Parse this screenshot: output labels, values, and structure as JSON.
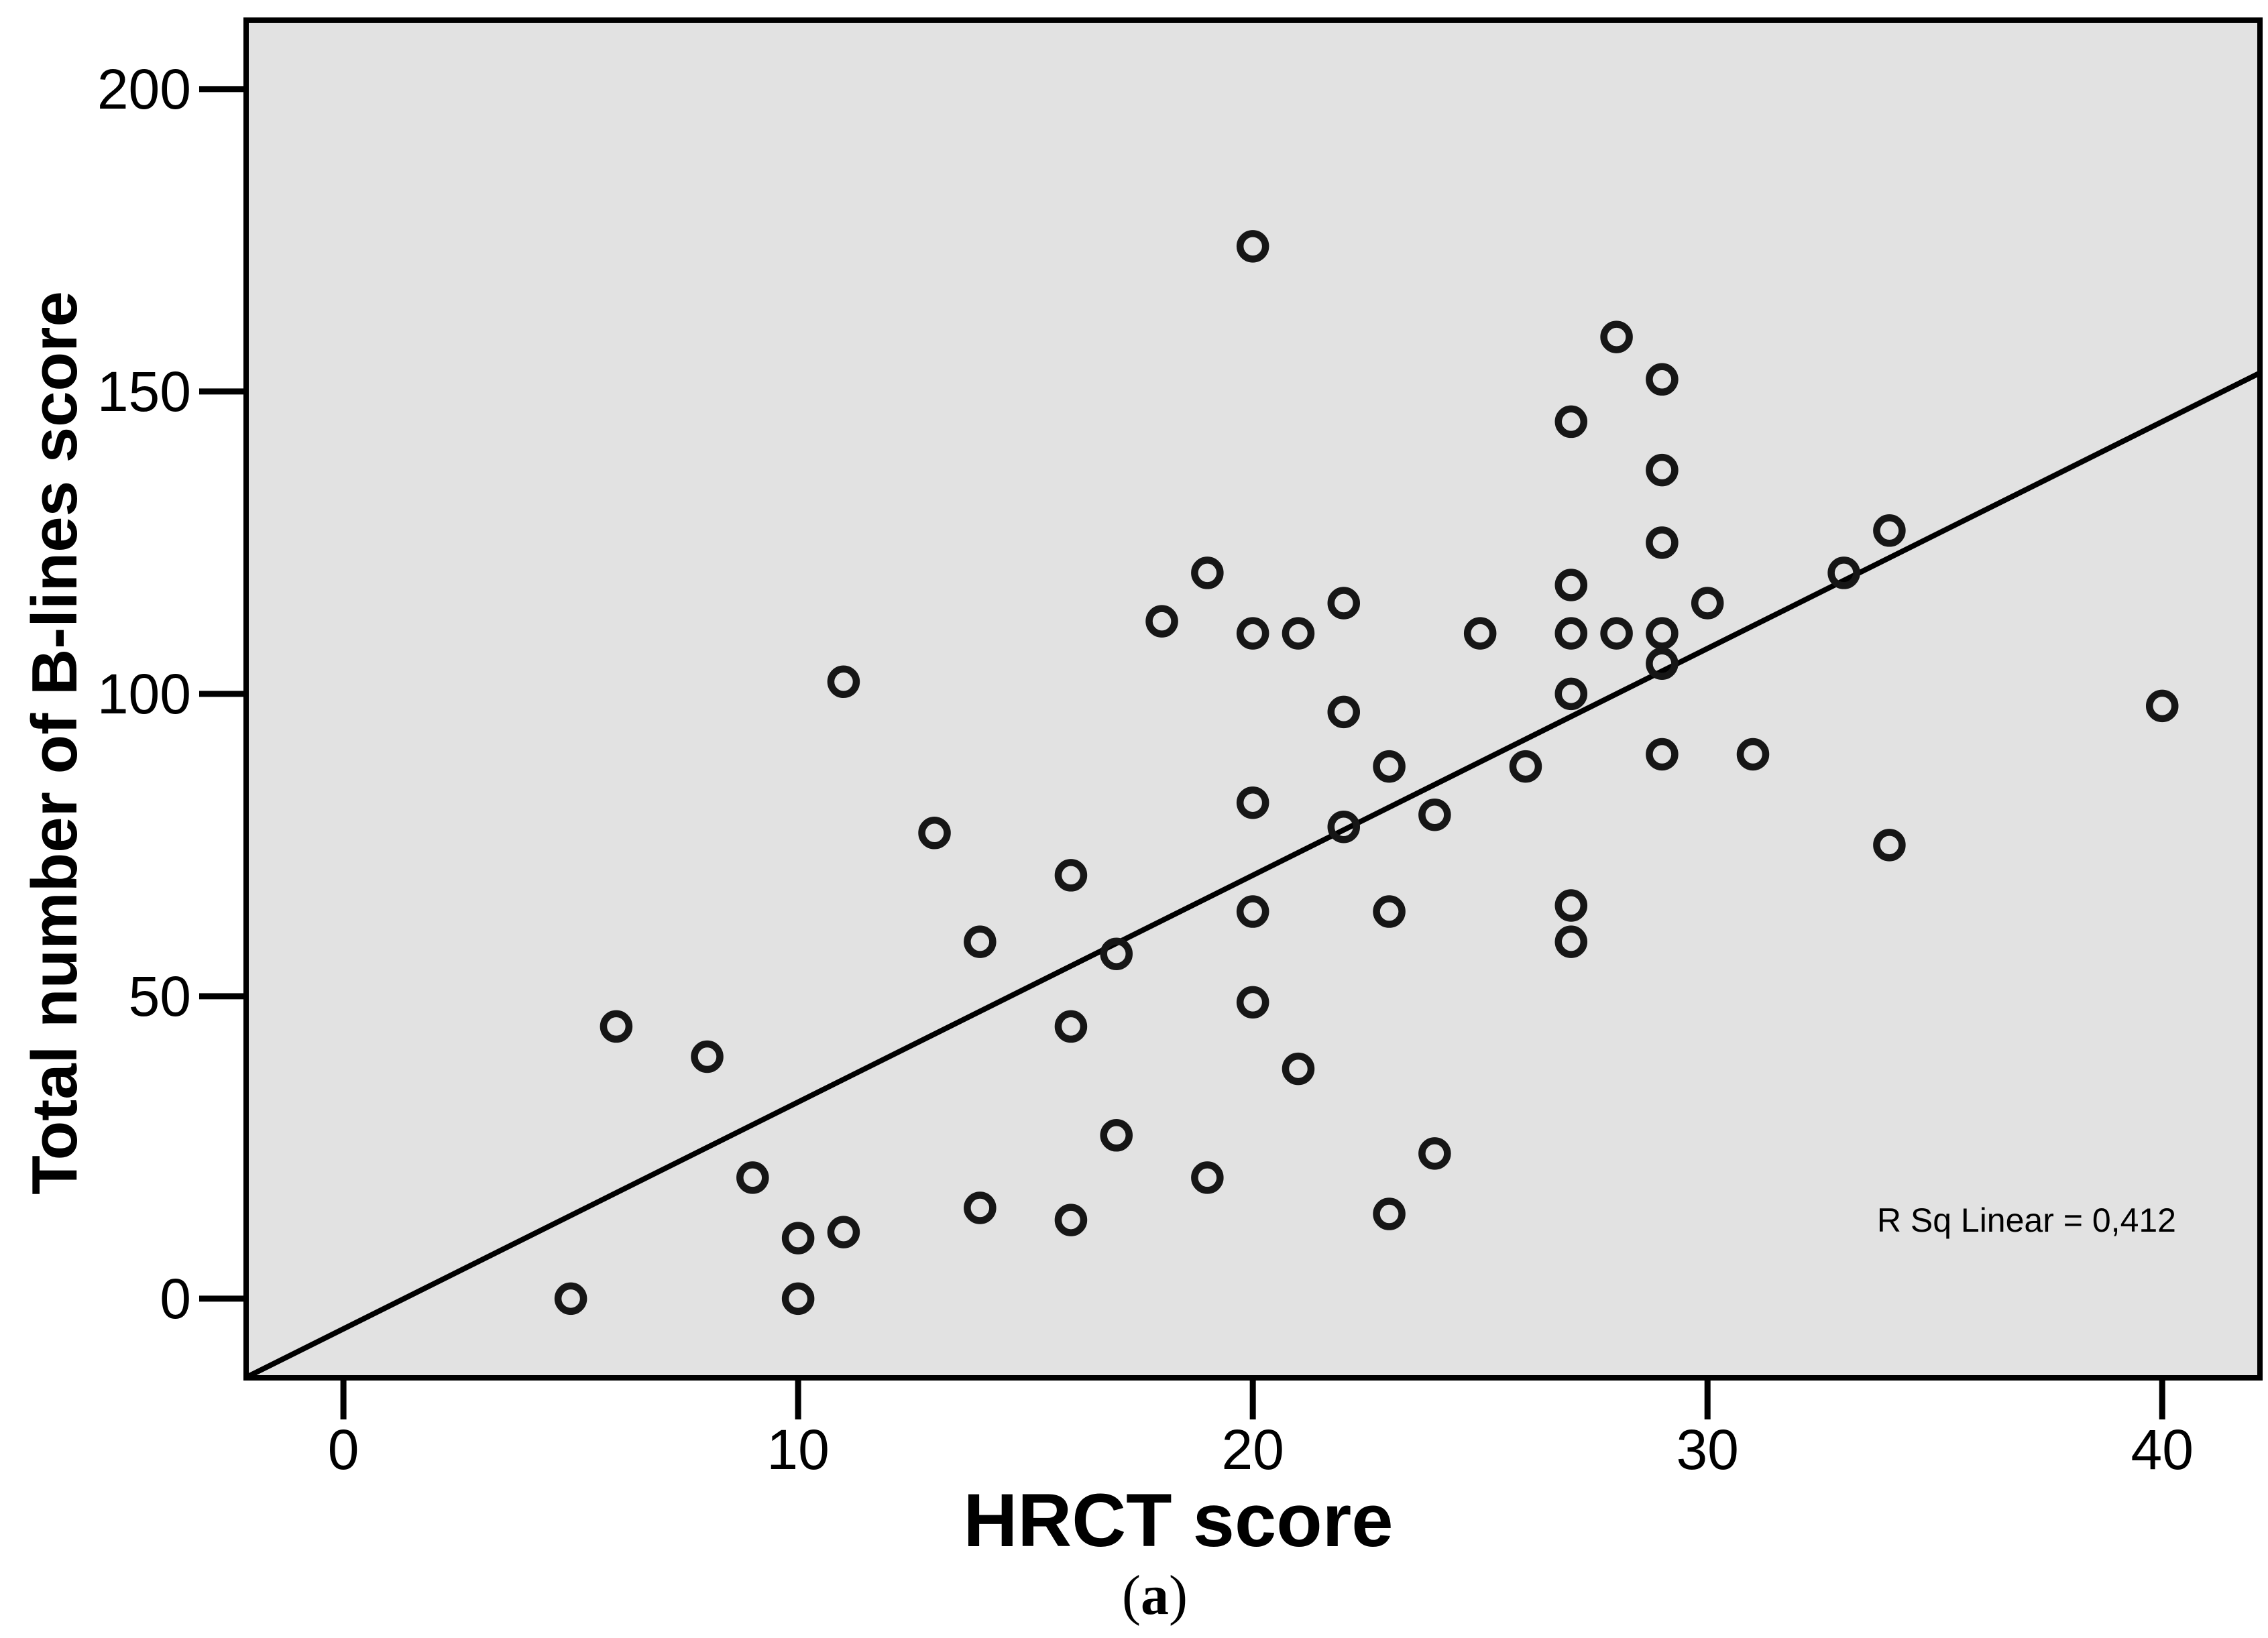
{
  "colors": {
    "plot_background": "#e2e2e2",
    "frame": "#000000",
    "marker": "#161616",
    "regression_line": "#000000",
    "text": "#000000",
    "page_background": "#ffffff"
  },
  "caption": {
    "open": "(",
    "letter": "a",
    "close": ")"
  },
  "chart_data": {
    "type": "scatter",
    "title": "",
    "xlabel": "HRCT score",
    "ylabel": "Total number of B-lines score",
    "annotation": "R Sq Linear = 0,412",
    "x_ticks": [
      0,
      10,
      20,
      30,
      40
    ],
    "y_ticks": [
      0,
      50,
      100,
      150,
      200
    ],
    "xlim": [
      -2.14,
      42.15
    ],
    "ylim": [
      -13.1,
      211.4
    ],
    "grid": false,
    "legend": "none",
    "marker_style": "hollow-circle",
    "regression_line": {
      "slope": 3.75,
      "intercept": -5
    },
    "points": [
      [
        5,
        0
      ],
      [
        6,
        45
      ],
      [
        8,
        40
      ],
      [
        9,
        20
      ],
      [
        10,
        0
      ],
      [
        10,
        10
      ],
      [
        11,
        11
      ],
      [
        11,
        102
      ],
      [
        13,
        77
      ],
      [
        14,
        15
      ],
      [
        14,
        59
      ],
      [
        16,
        13
      ],
      [
        16,
        45
      ],
      [
        16,
        70
      ],
      [
        17,
        27
      ],
      [
        17,
        57
      ],
      [
        18,
        112
      ],
      [
        19,
        20
      ],
      [
        19,
        120
      ],
      [
        20,
        49
      ],
      [
        20,
        64
      ],
      [
        20,
        82
      ],
      [
        20,
        110
      ],
      [
        20,
        174
      ],
      [
        21,
        38
      ],
      [
        21,
        110
      ],
      [
        22,
        78
      ],
      [
        22,
        97
      ],
      [
        22,
        115
      ],
      [
        23,
        14
      ],
      [
        23,
        64
      ],
      [
        23,
        88
      ],
      [
        24,
        24
      ],
      [
        24,
        80
      ],
      [
        25,
        110
      ],
      [
        26,
        88
      ],
      [
        27,
        59
      ],
      [
        27,
        65
      ],
      [
        27,
        100
      ],
      [
        27,
        110
      ],
      [
        27,
        118
      ],
      [
        27,
        145
      ],
      [
        28,
        110
      ],
      [
        28,
        159
      ],
      [
        29,
        90
      ],
      [
        29,
        105
      ],
      [
        29,
        110
      ],
      [
        29,
        125
      ],
      [
        29,
        137
      ],
      [
        29,
        152
      ],
      [
        30,
        115
      ],
      [
        31,
        90
      ],
      [
        33,
        120
      ],
      [
        34,
        75
      ],
      [
        34,
        127
      ],
      [
        40,
        98
      ]
    ]
  },
  "layout_note": "SPSS-style scatter plot figure"
}
